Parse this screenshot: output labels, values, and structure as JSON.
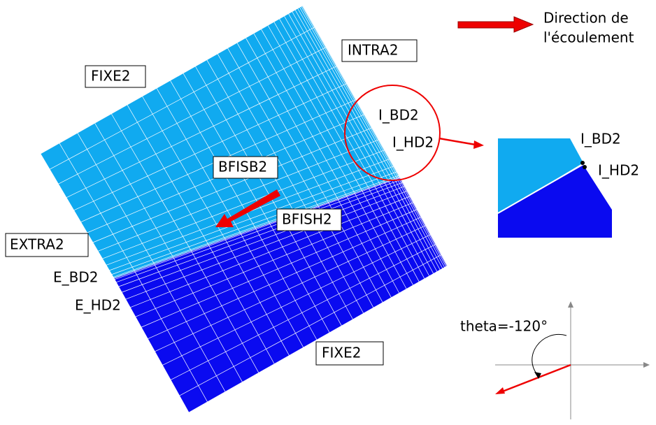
{
  "labels": {
    "fixe_top": "FIXE2",
    "intra": "INTRA2",
    "bfisb": "BFISB2",
    "bfish": "BFISH2",
    "extra": "EXTRA2",
    "fixe_bottom": "FIXE2",
    "i_bd": "I_BD2",
    "i_hd": "I_HD2",
    "e_bd": "E_BD2",
    "e_hd": "E_HD2",
    "inset_i_bd": "I_BD2",
    "inset_i_hd": "I_HD2",
    "flow_legend_line1": "Direction de",
    "flow_legend_line2": "l'écoulement",
    "theta": "theta=-120°"
  }
}
